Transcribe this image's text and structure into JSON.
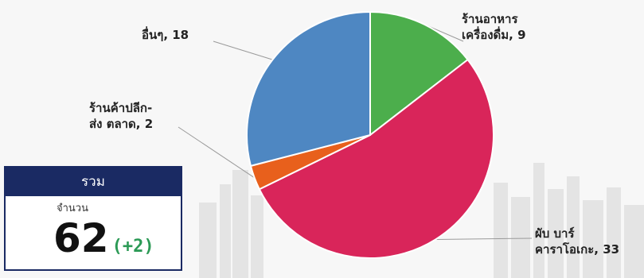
{
  "chart_data": {
    "type": "pie",
    "title": "",
    "slices": [
      {
        "label_lines": [
          "ร้านอาหาร",
          "เครื่องดื่ม, 9"
        ],
        "value": 9,
        "color": "#4cae4c"
      },
      {
        "label_lines": [
          "ผับ บาร์ คาราโอเกะ, 33"
        ],
        "value": 33,
        "color": "#d9255a"
      },
      {
        "label_lines": [
          "ร้านค้าปลีก-",
          "ส่ง ตลาด, 2"
        ],
        "value": 2,
        "color": "#e8601c"
      },
      {
        "label_lines": [
          "อื่นๆ, 18"
        ],
        "value": 18,
        "color": "#4e87c2"
      }
    ]
  },
  "summary": {
    "header": "รวม",
    "sub_label": "จำนวน",
    "total": "62",
    "change": "(+2)"
  },
  "colors": {
    "box_navy": "#1a2a63",
    "change_green": "#2c9a56"
  }
}
